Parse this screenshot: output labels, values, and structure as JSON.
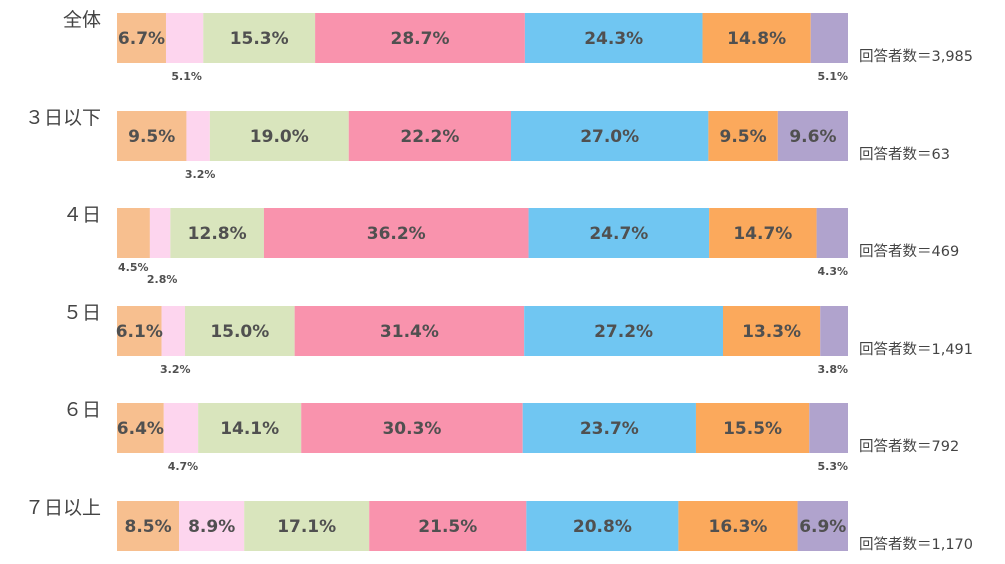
{
  "chart_data": {
    "type": "bar",
    "orientation": "horizontal",
    "stacked": true,
    "normalized_100": true,
    "categories": [
      "全体",
      "３日以下",
      "４日",
      "５日",
      "６日",
      "７日以上"
    ],
    "series_colors": [
      "#f7bf8f",
      "#fdd5ee",
      "#d9e5bd",
      "#f993ad",
      "#70c6f2",
      "#fba95c",
      "#b0a3cd"
    ],
    "rows": [
      {
        "values": [
          6.7,
          5.1,
          15.3,
          28.7,
          24.3,
          14.8,
          5.1
        ],
        "labels": [
          "6.7%",
          "5.1%",
          "15.3%",
          "28.7%",
          "24.3%",
          "14.8%",
          "5.1%"
        ],
        "respondents": "回答者数＝3,985"
      },
      {
        "values": [
          9.5,
          3.2,
          19.0,
          22.2,
          27.0,
          9.5,
          9.6
        ],
        "labels": [
          "9.5%",
          "3.2%",
          "19.0%",
          "22.2%",
          "27.0%",
          "9.5%",
          "9.6%"
        ],
        "respondents": "回答者数＝63"
      },
      {
        "values": [
          4.5,
          2.8,
          12.8,
          36.2,
          24.7,
          14.7,
          4.3
        ],
        "labels": [
          "4.5%",
          "2.8%",
          "12.8%",
          "36.2%",
          "24.7%",
          "14.7%",
          "4.3%"
        ],
        "respondents": "回答者数＝469"
      },
      {
        "values": [
          6.1,
          3.2,
          15.0,
          31.4,
          27.2,
          13.3,
          3.8
        ],
        "labels": [
          "6.1%",
          "3.2%",
          "15.0%",
          "31.4%",
          "27.2%",
          "13.3%",
          "3.8%"
        ],
        "respondents": "回答者数＝1,491"
      },
      {
        "values": [
          6.4,
          4.7,
          14.1,
          30.3,
          23.7,
          15.5,
          5.3
        ],
        "labels": [
          "6.4%",
          "4.7%",
          "14.1%",
          "30.3%",
          "23.7%",
          "15.5%",
          "5.3%"
        ],
        "respondents": "回答者数＝792"
      },
      {
        "values": [
          8.5,
          8.9,
          17.1,
          21.5,
          20.8,
          16.3,
          6.9
        ],
        "labels": [
          "8.5%",
          "8.9%",
          "17.1%",
          "21.5%",
          "20.8%",
          "16.3%",
          "6.9%"
        ],
        "respondents": "回答者数＝1,170"
      }
    ],
    "xlim": [
      0,
      100
    ],
    "grid": false,
    "legend": "none"
  }
}
